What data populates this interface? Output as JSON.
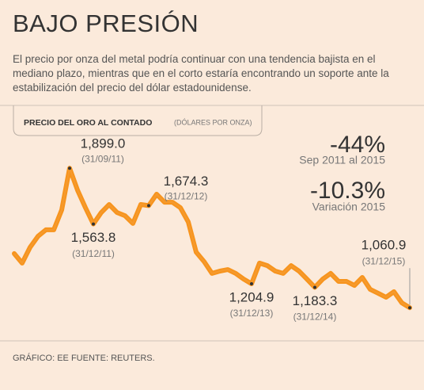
{
  "chart_data": {
    "type": "line",
    "title": "BAJO PRESIÓN",
    "subtitle": "El precio por onza del metal podría continuar con una tendencia bajista en el mediano plazo, mientras que en el corto estaría encontrando un soporte ante la estabilización del precio del dólar estadounidense.",
    "chart_label": "PRECIO DEL ORO AL CONTADO",
    "unit_label": "(DÓLARES POR ONZA)",
    "stats": [
      {
        "value": "-44%",
        "label": "Sep 2011 al 2015"
      },
      {
        "value": "-10.3%",
        "label": "Variación 2015"
      }
    ],
    "source": "GRÁFICO: EE FUENTE: REUTERS.",
    "color": "#f7941d",
    "ylim": [
      1000,
      2000
    ],
    "categories": [
      null,
      null,
      null,
      null,
      null,
      null,
      null,
      "(31/09/11)",
      null,
      null,
      "(31/12/11)",
      null,
      null,
      null,
      null,
      null,
      null,
      "(31/12/12)",
      null,
      null,
      null,
      null,
      null,
      null,
      null,
      null,
      null,
      null,
      null,
      null,
      "(31/12/13)",
      null,
      null,
      null,
      null,
      null,
      null,
      null,
      "(31/12/14)",
      null,
      null,
      null,
      null,
      null,
      null,
      null,
      null,
      null,
      null,
      null,
      "(31/12/15)"
    ],
    "values": [
      1386,
      1329,
      1424,
      1490,
      1529,
      1529,
      1648,
      1899.0,
      1767,
      1662,
      1563.8,
      1633,
      1681,
      1633,
      1614,
      1567,
      1681,
      1674.3,
      1743,
      1695,
      1695,
      1662,
      1576,
      1395,
      1338,
      1267,
      1281,
      1290,
      1267,
      1233,
      1204.9,
      1329,
      1314,
      1281,
      1267,
      1314,
      1281,
      1233,
      1183.3,
      1233,
      1267,
      1219,
      1219,
      1195,
      1243,
      1171,
      1148,
      1124,
      1157,
      1090,
      1060.9
    ],
    "value_labels": [
      null,
      null,
      null,
      null,
      null,
      null,
      null,
      "1,899.0",
      null,
      null,
      "1,563.8",
      null,
      null,
      null,
      null,
      null,
      null,
      "1,674.3",
      null,
      null,
      null,
      null,
      null,
      null,
      null,
      null,
      null,
      null,
      null,
      null,
      "1,204.9",
      null,
      null,
      null,
      null,
      null,
      null,
      null,
      "1,183.3",
      null,
      null,
      null,
      null,
      null,
      null,
      null,
      null,
      null,
      null,
      null,
      "1,060.9"
    ]
  }
}
